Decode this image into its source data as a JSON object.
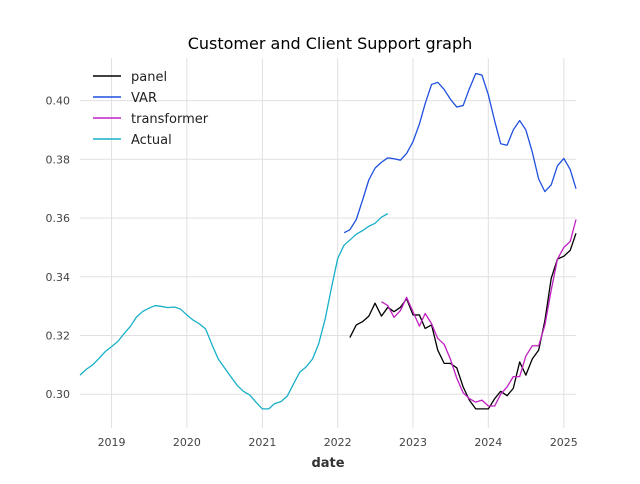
{
  "chart_data": {
    "type": "line",
    "title": "Customer and Client Support graph",
    "xlabel": "date",
    "ylabel": "",
    "x_type": "date",
    "xlim": [
      "2018-08-01",
      "2025-03-01"
    ],
    "ylim": [
      0.2885,
      0.4145
    ],
    "x_ticks": [
      {
        "date": "2019-01-01",
        "label": "2019"
      },
      {
        "date": "2020-01-01",
        "label": "2020"
      },
      {
        "date": "2021-01-01",
        "label": "2021"
      },
      {
        "date": "2022-01-01",
        "label": "2022"
      },
      {
        "date": "2023-01-01",
        "label": "2023"
      },
      {
        "date": "2024-01-01",
        "label": "2024"
      },
      {
        "date": "2025-01-01",
        "label": "2025"
      }
    ],
    "y_ticks": [
      {
        "value": 0.3,
        "label": "0.30"
      },
      {
        "value": 0.32,
        "label": "0.32"
      },
      {
        "value": 0.34,
        "label": "0.34"
      },
      {
        "value": 0.36,
        "label": "0.36"
      },
      {
        "value": 0.38,
        "label": "0.38"
      },
      {
        "value": 0.4,
        "label": "0.40"
      }
    ],
    "grid": true,
    "legend_position": "top-left",
    "series": [
      {
        "name": "panel",
        "color": "#000000",
        "points": [
          [
            "2022-03-01",
            0.3193
          ],
          [
            "2022-04-01",
            0.3236
          ],
          [
            "2022-05-01",
            0.3247
          ],
          [
            "2022-06-01",
            0.3266
          ],
          [
            "2022-07-01",
            0.331
          ],
          [
            "2022-08-01",
            0.3266
          ],
          [
            "2022-09-01",
            0.3296
          ],
          [
            "2022-10-01",
            0.3281
          ],
          [
            "2022-11-01",
            0.3296
          ],
          [
            "2022-12-01",
            0.3325
          ],
          [
            "2023-01-01",
            0.327
          ],
          [
            "2023-02-01",
            0.327
          ],
          [
            "2023-03-01",
            0.3224
          ],
          [
            "2023-04-01",
            0.3236
          ],
          [
            "2023-05-01",
            0.315
          ],
          [
            "2023-06-01",
            0.3105
          ],
          [
            "2023-07-01",
            0.3105
          ],
          [
            "2023-08-01",
            0.309
          ],
          [
            "2023-09-01",
            0.3025
          ],
          [
            "2023-10-01",
            0.298
          ],
          [
            "2023-11-01",
            0.295
          ],
          [
            "2023-12-01",
            0.295
          ],
          [
            "2024-01-01",
            0.295
          ],
          [
            "2024-02-01",
            0.2985
          ],
          [
            "2024-03-01",
            0.301
          ],
          [
            "2024-04-01",
            0.2995
          ],
          [
            "2024-05-01",
            0.302
          ],
          [
            "2024-06-01",
            0.311
          ],
          [
            "2024-07-01",
            0.3065
          ],
          [
            "2024-08-01",
            0.312
          ],
          [
            "2024-09-01",
            0.315
          ],
          [
            "2024-10-01",
            0.325
          ],
          [
            "2024-11-01",
            0.3395
          ],
          [
            "2024-12-01",
            0.346
          ],
          [
            "2025-01-01",
            0.347
          ],
          [
            "2025-02-01",
            0.349
          ],
          [
            "2025-03-01",
            0.3548
          ]
        ]
      },
      {
        "name": "VAR",
        "color": "#1f4fe0",
        "points": [
          [
            "2022-02-01",
            0.355
          ],
          [
            "2022-03-01",
            0.356
          ],
          [
            "2022-04-01",
            0.3595
          ],
          [
            "2022-05-01",
            0.366
          ],
          [
            "2022-06-01",
            0.373
          ],
          [
            "2022-07-01",
            0.377
          ],
          [
            "2022-08-01",
            0.379
          ],
          [
            "2022-09-01",
            0.3805
          ],
          [
            "2022-10-01",
            0.3802
          ],
          [
            "2022-11-01",
            0.3797
          ],
          [
            "2022-12-01",
            0.382
          ],
          [
            "2023-01-01",
            0.386
          ],
          [
            "2023-02-01",
            0.392
          ],
          [
            "2023-03-01",
            0.399
          ],
          [
            "2023-04-01",
            0.4055
          ],
          [
            "2023-05-01",
            0.4062
          ],
          [
            "2023-06-01",
            0.4038
          ],
          [
            "2023-07-01",
            0.4005
          ],
          [
            "2023-08-01",
            0.3978
          ],
          [
            "2023-09-01",
            0.3983
          ],
          [
            "2023-10-01",
            0.404
          ],
          [
            "2023-11-01",
            0.4092
          ],
          [
            "2023-12-01",
            0.4087
          ],
          [
            "2024-01-01",
            0.402
          ],
          [
            "2024-02-01",
            0.393
          ],
          [
            "2024-03-01",
            0.3853
          ],
          [
            "2024-04-01",
            0.3848
          ],
          [
            "2024-05-01",
            0.39
          ],
          [
            "2024-06-01",
            0.3932
          ],
          [
            "2024-07-01",
            0.39
          ],
          [
            "2024-08-01",
            0.3825
          ],
          [
            "2024-09-01",
            0.3733
          ],
          [
            "2024-10-01",
            0.369
          ],
          [
            "2024-11-01",
            0.3713
          ],
          [
            "2024-12-01",
            0.3778
          ],
          [
            "2025-01-01",
            0.3803
          ],
          [
            "2025-02-01",
            0.3765
          ],
          [
            "2025-03-01",
            0.37
          ]
        ]
      },
      {
        "name": "transformer",
        "color": "#c020c0",
        "points": [
          [
            "2022-08-01",
            0.3315
          ],
          [
            "2022-09-01",
            0.3302
          ],
          [
            "2022-10-01",
            0.3262
          ],
          [
            "2022-11-01",
            0.3285
          ],
          [
            "2022-12-01",
            0.333
          ],
          [
            "2023-01-01",
            0.3281
          ],
          [
            "2023-02-01",
            0.3232
          ],
          [
            "2023-03-01",
            0.3275
          ],
          [
            "2023-04-01",
            0.324
          ],
          [
            "2023-05-01",
            0.319
          ],
          [
            "2023-06-01",
            0.317
          ],
          [
            "2023-07-01",
            0.312
          ],
          [
            "2023-08-01",
            0.3055
          ],
          [
            "2023-09-01",
            0.3005
          ],
          [
            "2023-10-01",
            0.2985
          ],
          [
            "2023-11-01",
            0.2973
          ],
          [
            "2023-12-01",
            0.298
          ],
          [
            "2024-01-01",
            0.296
          ],
          [
            "2024-02-01",
            0.296
          ],
          [
            "2024-03-01",
            0.3
          ],
          [
            "2024-04-01",
            0.3025
          ],
          [
            "2024-05-01",
            0.306
          ],
          [
            "2024-06-01",
            0.306
          ],
          [
            "2024-07-01",
            0.313
          ],
          [
            "2024-08-01",
            0.3165
          ],
          [
            "2024-09-01",
            0.3165
          ],
          [
            "2024-10-01",
            0.3235
          ],
          [
            "2024-11-01",
            0.3355
          ],
          [
            "2024-12-01",
            0.346
          ],
          [
            "2025-01-01",
            0.35
          ],
          [
            "2025-02-01",
            0.352
          ],
          [
            "2025-03-01",
            0.3595
          ]
        ]
      },
      {
        "name": "Actual",
        "color": "#17b0c8",
        "points": [
          [
            "2018-08-01",
            0.3065
          ],
          [
            "2018-09-01",
            0.3085
          ],
          [
            "2018-10-01",
            0.31
          ],
          [
            "2018-11-01",
            0.3122
          ],
          [
            "2018-12-01",
            0.3145
          ],
          [
            "2019-01-01",
            0.3162
          ],
          [
            "2019-02-01",
            0.318
          ],
          [
            "2019-03-01",
            0.3205
          ],
          [
            "2019-04-01",
            0.323
          ],
          [
            "2019-05-01",
            0.3262
          ],
          [
            "2019-06-01",
            0.3282
          ],
          [
            "2019-07-01",
            0.3293
          ],
          [
            "2019-08-01",
            0.3302
          ],
          [
            "2019-09-01",
            0.3299
          ],
          [
            "2019-10-01",
            0.3295
          ],
          [
            "2019-11-01",
            0.3297
          ],
          [
            "2019-12-01",
            0.329
          ],
          [
            "2020-01-01",
            0.327
          ],
          [
            "2020-02-01",
            0.3252
          ],
          [
            "2020-03-01",
            0.324
          ],
          [
            "2020-04-01",
            0.3222
          ],
          [
            "2020-05-01",
            0.317
          ],
          [
            "2020-06-01",
            0.312
          ],
          [
            "2020-07-01",
            0.309
          ],
          [
            "2020-08-01",
            0.306
          ],
          [
            "2020-09-01",
            0.303
          ],
          [
            "2020-10-01",
            0.301
          ],
          [
            "2020-11-01",
            0.2997
          ],
          [
            "2020-12-01",
            0.2973
          ],
          [
            "2021-01-01",
            0.295
          ],
          [
            "2021-02-01",
            0.295
          ],
          [
            "2021-03-01",
            0.2968
          ],
          [
            "2021-04-01",
            0.2975
          ],
          [
            "2021-05-01",
            0.2993
          ],
          [
            "2021-06-01",
            0.3035
          ],
          [
            "2021-07-01",
            0.3075
          ],
          [
            "2021-08-01",
            0.3093
          ],
          [
            "2021-09-01",
            0.312
          ],
          [
            "2021-10-01",
            0.3172
          ],
          [
            "2021-11-01",
            0.3255
          ],
          [
            "2021-12-01",
            0.336
          ],
          [
            "2022-01-01",
            0.3462
          ],
          [
            "2022-02-01",
            0.3508
          ],
          [
            "2022-03-01",
            0.3525
          ],
          [
            "2022-04-01",
            0.3545
          ],
          [
            "2022-05-01",
            0.3557
          ],
          [
            "2022-06-01",
            0.3572
          ],
          [
            "2022-07-01",
            0.3582
          ],
          [
            "2022-08-01",
            0.3603
          ],
          [
            "2022-09-01",
            0.3615
          ]
        ]
      }
    ]
  }
}
